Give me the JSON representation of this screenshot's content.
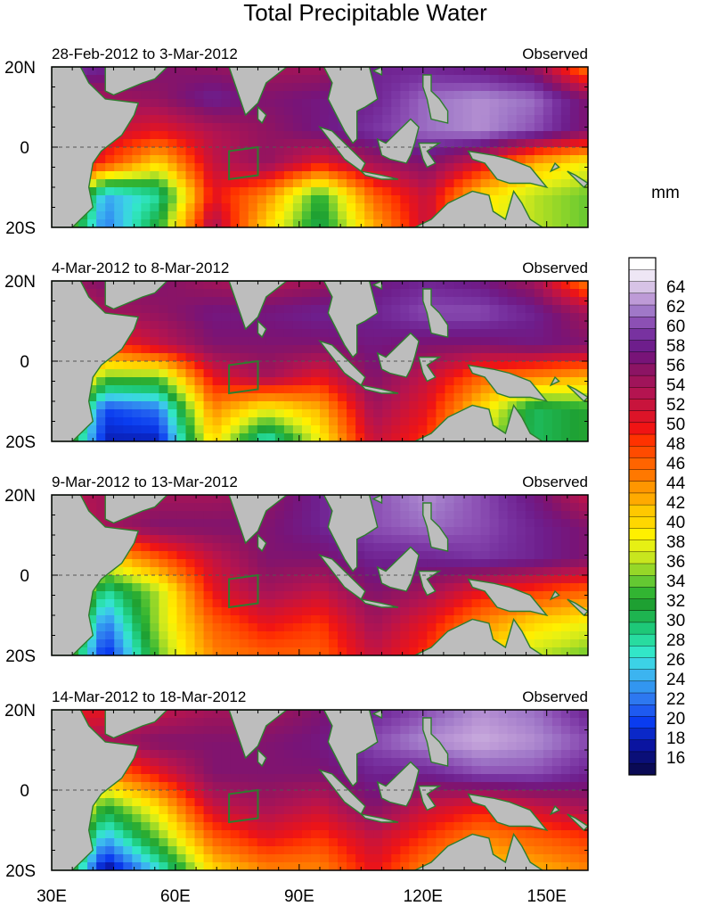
{
  "title": "Total Precipitable Water",
  "units_label": "mm",
  "chart_data": {
    "type": "heatmap",
    "title": "Total Precipitable Water",
    "x_ticks": [
      "30E",
      "60E",
      "90E",
      "120E",
      "150E"
    ],
    "y_ticks": [
      "20N",
      "0",
      "20S"
    ],
    "xlim": [
      30,
      160
    ],
    "ylim": [
      -20,
      20
    ],
    "x_tick_values": [
      30,
      60,
      90,
      120,
      150
    ],
    "y_tick_values": [
      20,
      0,
      -20
    ],
    "colorbar": {
      "label": "mm",
      "tick_labels": [
        "16",
        "18",
        "20",
        "22",
        "24",
        "26",
        "28",
        "30",
        "32",
        "34",
        "36",
        "38",
        "40",
        "42",
        "44",
        "46",
        "48",
        "50",
        "52",
        "54",
        "56",
        "58",
        "60",
        "62",
        "64"
      ],
      "range": [
        15,
        66
      ],
      "level_colors": [
        "#0a0a55",
        "#0a0f78",
        "#0a14a0",
        "#0a28c8",
        "#0a3cf0",
        "#1e5af0",
        "#2d78f0",
        "#3296f0",
        "#3cb4f0",
        "#3cd2e6",
        "#32e6c8",
        "#28dca0",
        "#1ec878",
        "#1eb450",
        "#1ea032",
        "#32b432",
        "#64c832",
        "#96d728",
        "#c8e61e",
        "#e6f014",
        "#fff000",
        "#ffd700",
        "#ffc800",
        "#ffaa00",
        "#ff9600",
        "#ff7800",
        "#ff6400",
        "#ff4b00",
        "#ff3200",
        "#f01414",
        "#dc1428",
        "#c8143c",
        "#b41450",
        "#a0145a",
        "#8c1464",
        "#781478",
        "#6e1e8c",
        "#7832a0",
        "#8c50b4",
        "#a078c8",
        "#be9bd7",
        "#d7c3e6",
        "#eee6f5",
        "#ffffff"
      ]
    },
    "panels": [
      {
        "period": "28-Feb-2012 to 3-Mar-2012",
        "label_right": "Observed",
        "values": [
          [
            60,
            58,
            56,
            55,
            54,
            54,
            58,
            58,
            57,
            55,
            44
          ],
          [
            52,
            54,
            55,
            58,
            56,
            57,
            58,
            61,
            62,
            61,
            56
          ],
          [
            58,
            52,
            50,
            53,
            55,
            57,
            59,
            61,
            62,
            60,
            56
          ],
          [
            56,
            48,
            40,
            52,
            55,
            50,
            54,
            56,
            51,
            42,
            38
          ],
          [
            46,
            24,
            28,
            50,
            44,
            32,
            46,
            52,
            40,
            36,
            34
          ],
          [
            40,
            22,
            32,
            54,
            40,
            30,
            42,
            52,
            38,
            36,
            34
          ]
        ]
      },
      {
        "period": "4-Mar-2012 to 8-Mar-2012",
        "label_right": "Observed",
        "values": [
          [
            54,
            56,
            56,
            54,
            53,
            54,
            57,
            58,
            57,
            54,
            44
          ],
          [
            50,
            54,
            55,
            57,
            57,
            58,
            58,
            60,
            60,
            58,
            54
          ],
          [
            54,
            48,
            52,
            56,
            56,
            56,
            57,
            56,
            56,
            57,
            56
          ],
          [
            52,
            34,
            34,
            50,
            54,
            50,
            56,
            52,
            46,
            44,
            42
          ],
          [
            44,
            20,
            22,
            44,
            38,
            42,
            54,
            50,
            40,
            30,
            32
          ],
          [
            40,
            18,
            18,
            40,
            26,
            38,
            52,
            48,
            36,
            30,
            32
          ]
        ]
      },
      {
        "period": "9-Mar-2012 to 13-Mar-2012",
        "label_right": "Observed",
        "values": [
          [
            52,
            54,
            54,
            54,
            55,
            58,
            60,
            62,
            60,
            57,
            52
          ],
          [
            50,
            54,
            56,
            56,
            56,
            58,
            60,
            61,
            60,
            58,
            56
          ],
          [
            54,
            40,
            46,
            52,
            56,
            56,
            58,
            58,
            59,
            58,
            56
          ],
          [
            50,
            28,
            36,
            50,
            54,
            52,
            56,
            54,
            50,
            48,
            46
          ],
          [
            44,
            22,
            36,
            46,
            50,
            48,
            54,
            50,
            44,
            40,
            38
          ],
          [
            42,
            18,
            34,
            44,
            46,
            46,
            52,
            48,
            40,
            36,
            34
          ]
        ]
      },
      {
        "period": "14-Mar-2012 to 18-Mar-2012",
        "label_right": "Observed",
        "values": [
          [
            50,
            50,
            52,
            54,
            54,
            56,
            58,
            60,
            62,
            61,
            58
          ],
          [
            52,
            54,
            56,
            56,
            56,
            57,
            60,
            62,
            63,
            62,
            60
          ],
          [
            54,
            44,
            50,
            56,
            56,
            56,
            58,
            58,
            60,
            60,
            58
          ],
          [
            50,
            32,
            40,
            52,
            54,
            52,
            56,
            52,
            50,
            52,
            54
          ],
          [
            44,
            24,
            34,
            46,
            50,
            48,
            52,
            48,
            44,
            46,
            48
          ],
          [
            40,
            16,
            26,
            40,
            44,
            44,
            50,
            44,
            40,
            42,
            44
          ]
        ]
      }
    ]
  }
}
